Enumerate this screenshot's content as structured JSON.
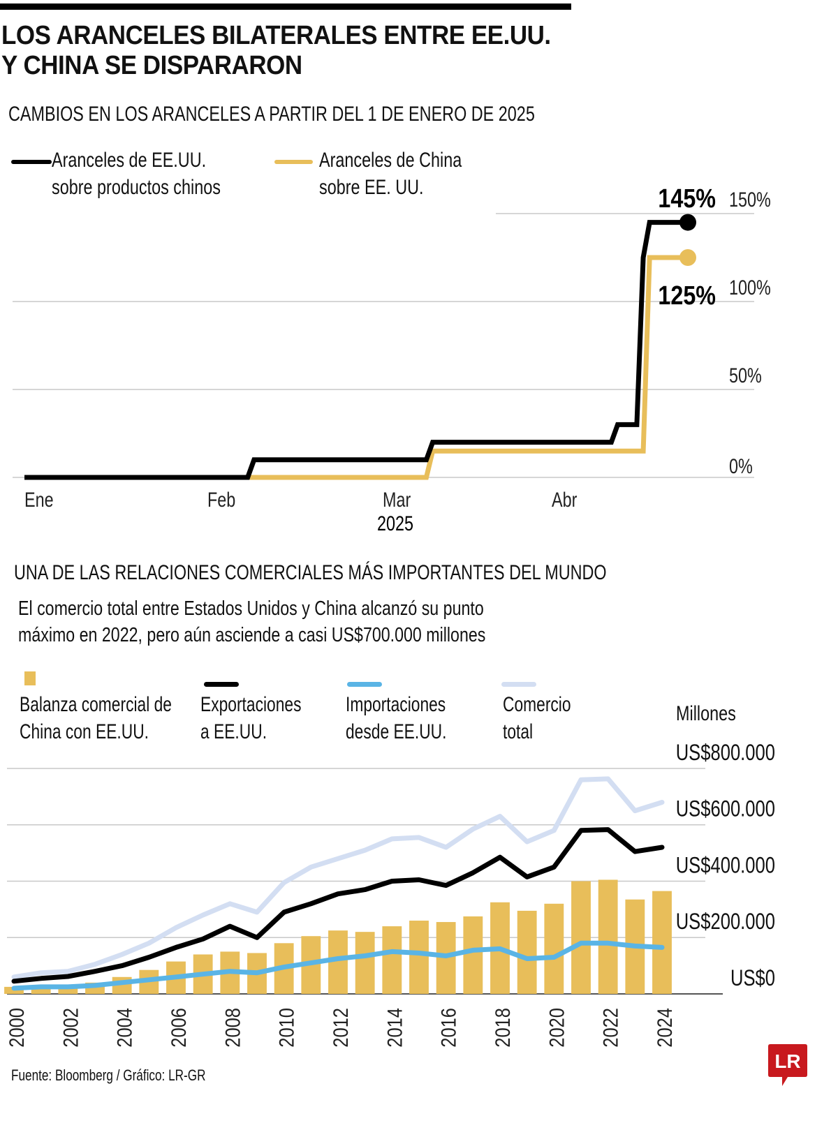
{
  "header": {
    "title_line1": "LOS ARANCELES BILATERALES ENTRE EE.UU.",
    "title_line2": "Y CHINA SE DISPARARON"
  },
  "tariffs": {
    "subtitle": "CAMBIOS EN LOS ARANCELES A PARTIR DEL 1 DE ENERO DE 2025",
    "legend": [
      {
        "line1": "Aranceles de EE.UU.",
        "line2": "sobre productos chinos",
        "color": "#000000"
      },
      {
        "line1": "Aranceles de China",
        "line2": "sobre EE. UU.",
        "color": "#E8BE5A"
      }
    ],
    "end_labels": {
      "us": "145%",
      "china": "125%"
    }
  },
  "trade": {
    "subtitle": "UNA DE LAS RELACIONES COMERCIALES MÁS IMPORTANTES DEL MUNDO",
    "desc_line1": "El comercio total entre Estados Unidos y China alcanzó su punto",
    "desc_line2": "máximo en 2022, pero aún asciende a casi US$700.000 millones",
    "legend": [
      {
        "line1": "Balanza comercial de",
        "line2": "China con EE.UU.",
        "color": "#E8BE5A",
        "kind": "bar"
      },
      {
        "line1": "Exportaciones",
        "line2": "a EE.UU.",
        "color": "#000000",
        "kind": "line"
      },
      {
        "line1": "Importaciones",
        "line2": "desde EE.UU.",
        "color": "#5AB4E5",
        "kind": "line"
      },
      {
        "line1": "Comercio",
        "line2": "total",
        "color": "#D3DEF2",
        "kind": "line"
      }
    ],
    "unit_label": "Millones"
  },
  "footer": {
    "source": "Fuente: Bloomberg / Gráfico: LR-GR",
    "logo_text": "LR",
    "logo_color": "#C8191E"
  },
  "chart_data": [
    {
      "type": "line",
      "title": "CAMBIOS EN LOS ARANCELES A PARTIR DEL 1 DE ENERO DE 2025",
      "xlabel": "2025",
      "ylabel": "",
      "x_ticks": [
        "Ene",
        "Feb",
        "Mar",
        "Abr"
      ],
      "x_tick_days": [
        0,
        31,
        59,
        90
      ],
      "x_range_days": [
        0,
        104
      ],
      "y_ticks": [
        "0%",
        "50%",
        "100%",
        "150%"
      ],
      "y_tick_values": [
        0,
        50,
        100,
        150
      ],
      "ylim": [
        0,
        150
      ],
      "grid": true,
      "legend_position": "top-left",
      "series": [
        {
          "name": "Aranceles de EE.UU. sobre productos chinos",
          "color": "#000000",
          "points": [
            [
              0,
              0
            ],
            [
              35,
              0
            ],
            [
              36,
              10
            ],
            [
              63,
              10
            ],
            [
              64,
              20
            ],
            [
              92,
              20
            ],
            [
              93,
              30
            ],
            [
              96,
              30
            ],
            [
              97,
              125
            ],
            [
              98,
              145
            ],
            [
              104,
              145
            ]
          ],
          "end_label": "145%"
        },
        {
          "name": "Aranceles de China sobre EE. UU.",
          "color": "#E8BE5A",
          "points": [
            [
              0,
              0
            ],
            [
              63,
              0
            ],
            [
              64,
              15
            ],
            [
              97,
              15
            ],
            [
              98,
              125
            ],
            [
              104,
              125
            ]
          ],
          "end_label": "125%"
        }
      ]
    },
    {
      "type": "bar",
      "title": "UNA DE LAS RELACIONES COMERCIALES MÁS IMPORTANTES DEL MUNDO",
      "xlabel": "",
      "ylabel": "Millones",
      "categories": [
        "2000",
        "2001",
        "2002",
        "2003",
        "2004",
        "2005",
        "2006",
        "2007",
        "2008",
        "2009",
        "2010",
        "2011",
        "2012",
        "2013",
        "2014",
        "2015",
        "2016",
        "2017",
        "2018",
        "2019",
        "2020",
        "2021",
        "2022",
        "2023",
        "2024"
      ],
      "x_tick_labels": [
        "2000",
        "2002",
        "2004",
        "2006",
        "2008",
        "2010",
        "2012",
        "2014",
        "2016",
        "2018",
        "2020",
        "2022",
        "2024"
      ],
      "y_ticks": [
        "US$0",
        "US$200.000",
        "US$400.000",
        "US$600.000",
        "US$800.000"
      ],
      "y_tick_values": [
        0,
        200000,
        400000,
        600000,
        800000
      ],
      "ylim": [
        0,
        800000
      ],
      "grid": true,
      "legend_position": "top",
      "series": [
        {
          "name": "Balanza comercial de China con EE.UU.",
          "kind": "bar",
          "color": "#E8BE5A",
          "values": [
            25000,
            20000,
            25000,
            40000,
            60000,
            85000,
            115000,
            140000,
            150000,
            145000,
            180000,
            205000,
            225000,
            220000,
            240000,
            260000,
            255000,
            275000,
            325000,
            295000,
            320000,
            400000,
            405000,
            335000,
            365000
          ]
        },
        {
          "name": "Exportaciones a EE.UU.",
          "kind": "line",
          "color": "#000000",
          "values": [
            45000,
            55000,
            62000,
            80000,
            100000,
            130000,
            165000,
            195000,
            240000,
            200000,
            290000,
            320000,
            355000,
            370000,
            400000,
            405000,
            385000,
            430000,
            485000,
            415000,
            450000,
            580000,
            583000,
            505000,
            520000
          ]
        },
        {
          "name": "Importaciones desde EE.UU.",
          "kind": "line",
          "color": "#5AB4E5",
          "values": [
            20000,
            25000,
            25000,
            30000,
            40000,
            50000,
            60000,
            70000,
            80000,
            75000,
            95000,
            110000,
            125000,
            135000,
            150000,
            145000,
            135000,
            155000,
            160000,
            125000,
            130000,
            180000,
            180000,
            170000,
            165000
          ]
        },
        {
          "name": "Comercio total",
          "kind": "line",
          "color": "#D3DEF2",
          "values": [
            60000,
            75000,
            80000,
            105000,
            140000,
            180000,
            235000,
            280000,
            320000,
            290000,
            395000,
            450000,
            480000,
            510000,
            550000,
            555000,
            520000,
            585000,
            630000,
            540000,
            580000,
            760000,
            763000,
            650000,
            680000
          ]
        }
      ]
    }
  ]
}
